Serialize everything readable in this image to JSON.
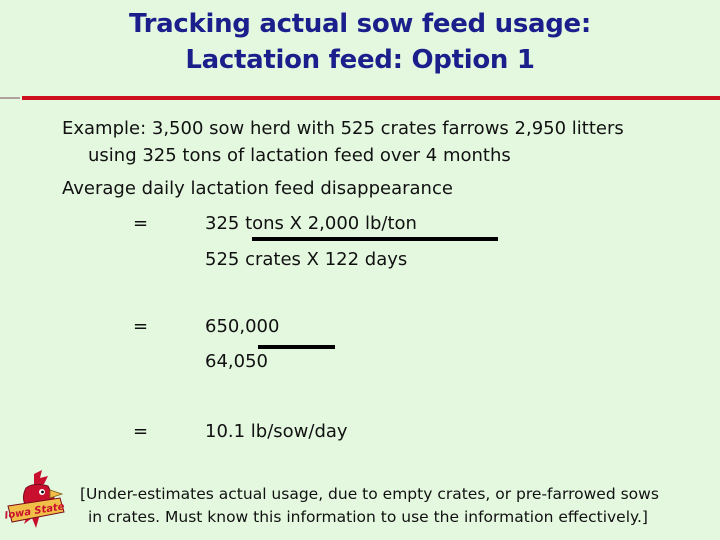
{
  "slide": {
    "title_line1": "Tracking actual sow feed usage:",
    "title_line2": "Lactation feed: Option 1",
    "example_line1": "Example: 3,500 sow herd with 525 crates farrows 2,950 litters",
    "example_line2": "using 325 tons of lactation feed over 4 months",
    "avg_heading": "Average daily lactation feed disappearance",
    "eq_sign": "=",
    "step1_numerator": "325 tons X 2,000 lb/ton",
    "step1_denominator": "525 crates X 122 days",
    "step2_numerator": "650,000",
    "step2_denominator": "64,050",
    "result": "10.1 lb/sow/day",
    "note_line1": "[Under-estimates actual usage, due to empty crates, or pre-farrowed sows",
    "note_line2": "in crates.  Must know this information to use the information effectively.]"
  },
  "logo": {
    "text": "Iowa State"
  },
  "colors": {
    "title": "#1b1f8c",
    "rule": "#cc1020",
    "background": "#e4f8e0"
  }
}
